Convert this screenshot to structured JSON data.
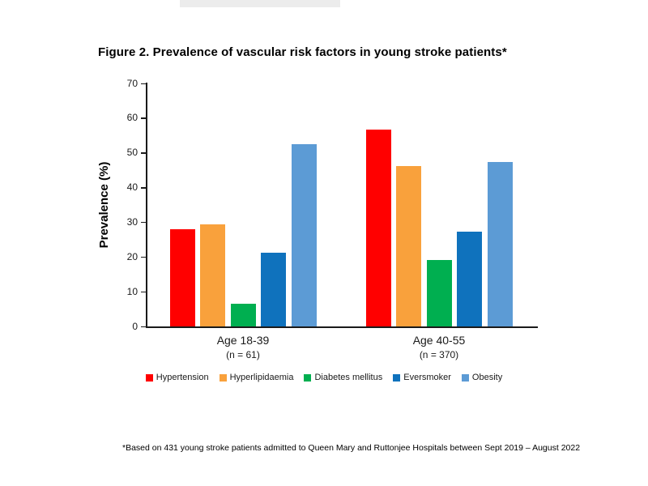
{
  "page": {
    "title": "Figure 2. Prevalence of vascular risk factors in young stroke patients*",
    "footnote": "*Based on 431 young stroke patients admitted to Queen Mary and Ruttonjee Hospitals between Sept 2019 – August 2022"
  },
  "chart_data": {
    "type": "bar",
    "title": "Figure 2. Prevalence of vascular risk factors in young stroke patients*",
    "xlabel": "",
    "ylabel": "Prevalence (%)",
    "ylim": [
      0,
      70
    ],
    "yticks": [
      0,
      10,
      20,
      30,
      40,
      50,
      60,
      70
    ],
    "grid": false,
    "legend_position": "bottom",
    "categories": [
      "Age 18-39",
      "Age 40-55"
    ],
    "category_sublabels": [
      "(n = 61)",
      "(n = 370)"
    ],
    "series": [
      {
        "name": "Hypertension",
        "color": "#FF0000",
        "values": [
          27.9,
          56.8
        ]
      },
      {
        "name": "Hyperlipidaemia",
        "color": "#F9A13C",
        "values": [
          29.5,
          46.2
        ]
      },
      {
        "name": "Diabetes mellitus",
        "color": "#00AF50",
        "values": [
          6.6,
          19.2
        ]
      },
      {
        "name": "Eversmoker",
        "color": "#0F72BD",
        "values": [
          21.3,
          27.3
        ]
      },
      {
        "name": "Obesity",
        "color": "#5C9BD5",
        "values": [
          52.5,
          47.3
        ]
      }
    ]
  }
}
